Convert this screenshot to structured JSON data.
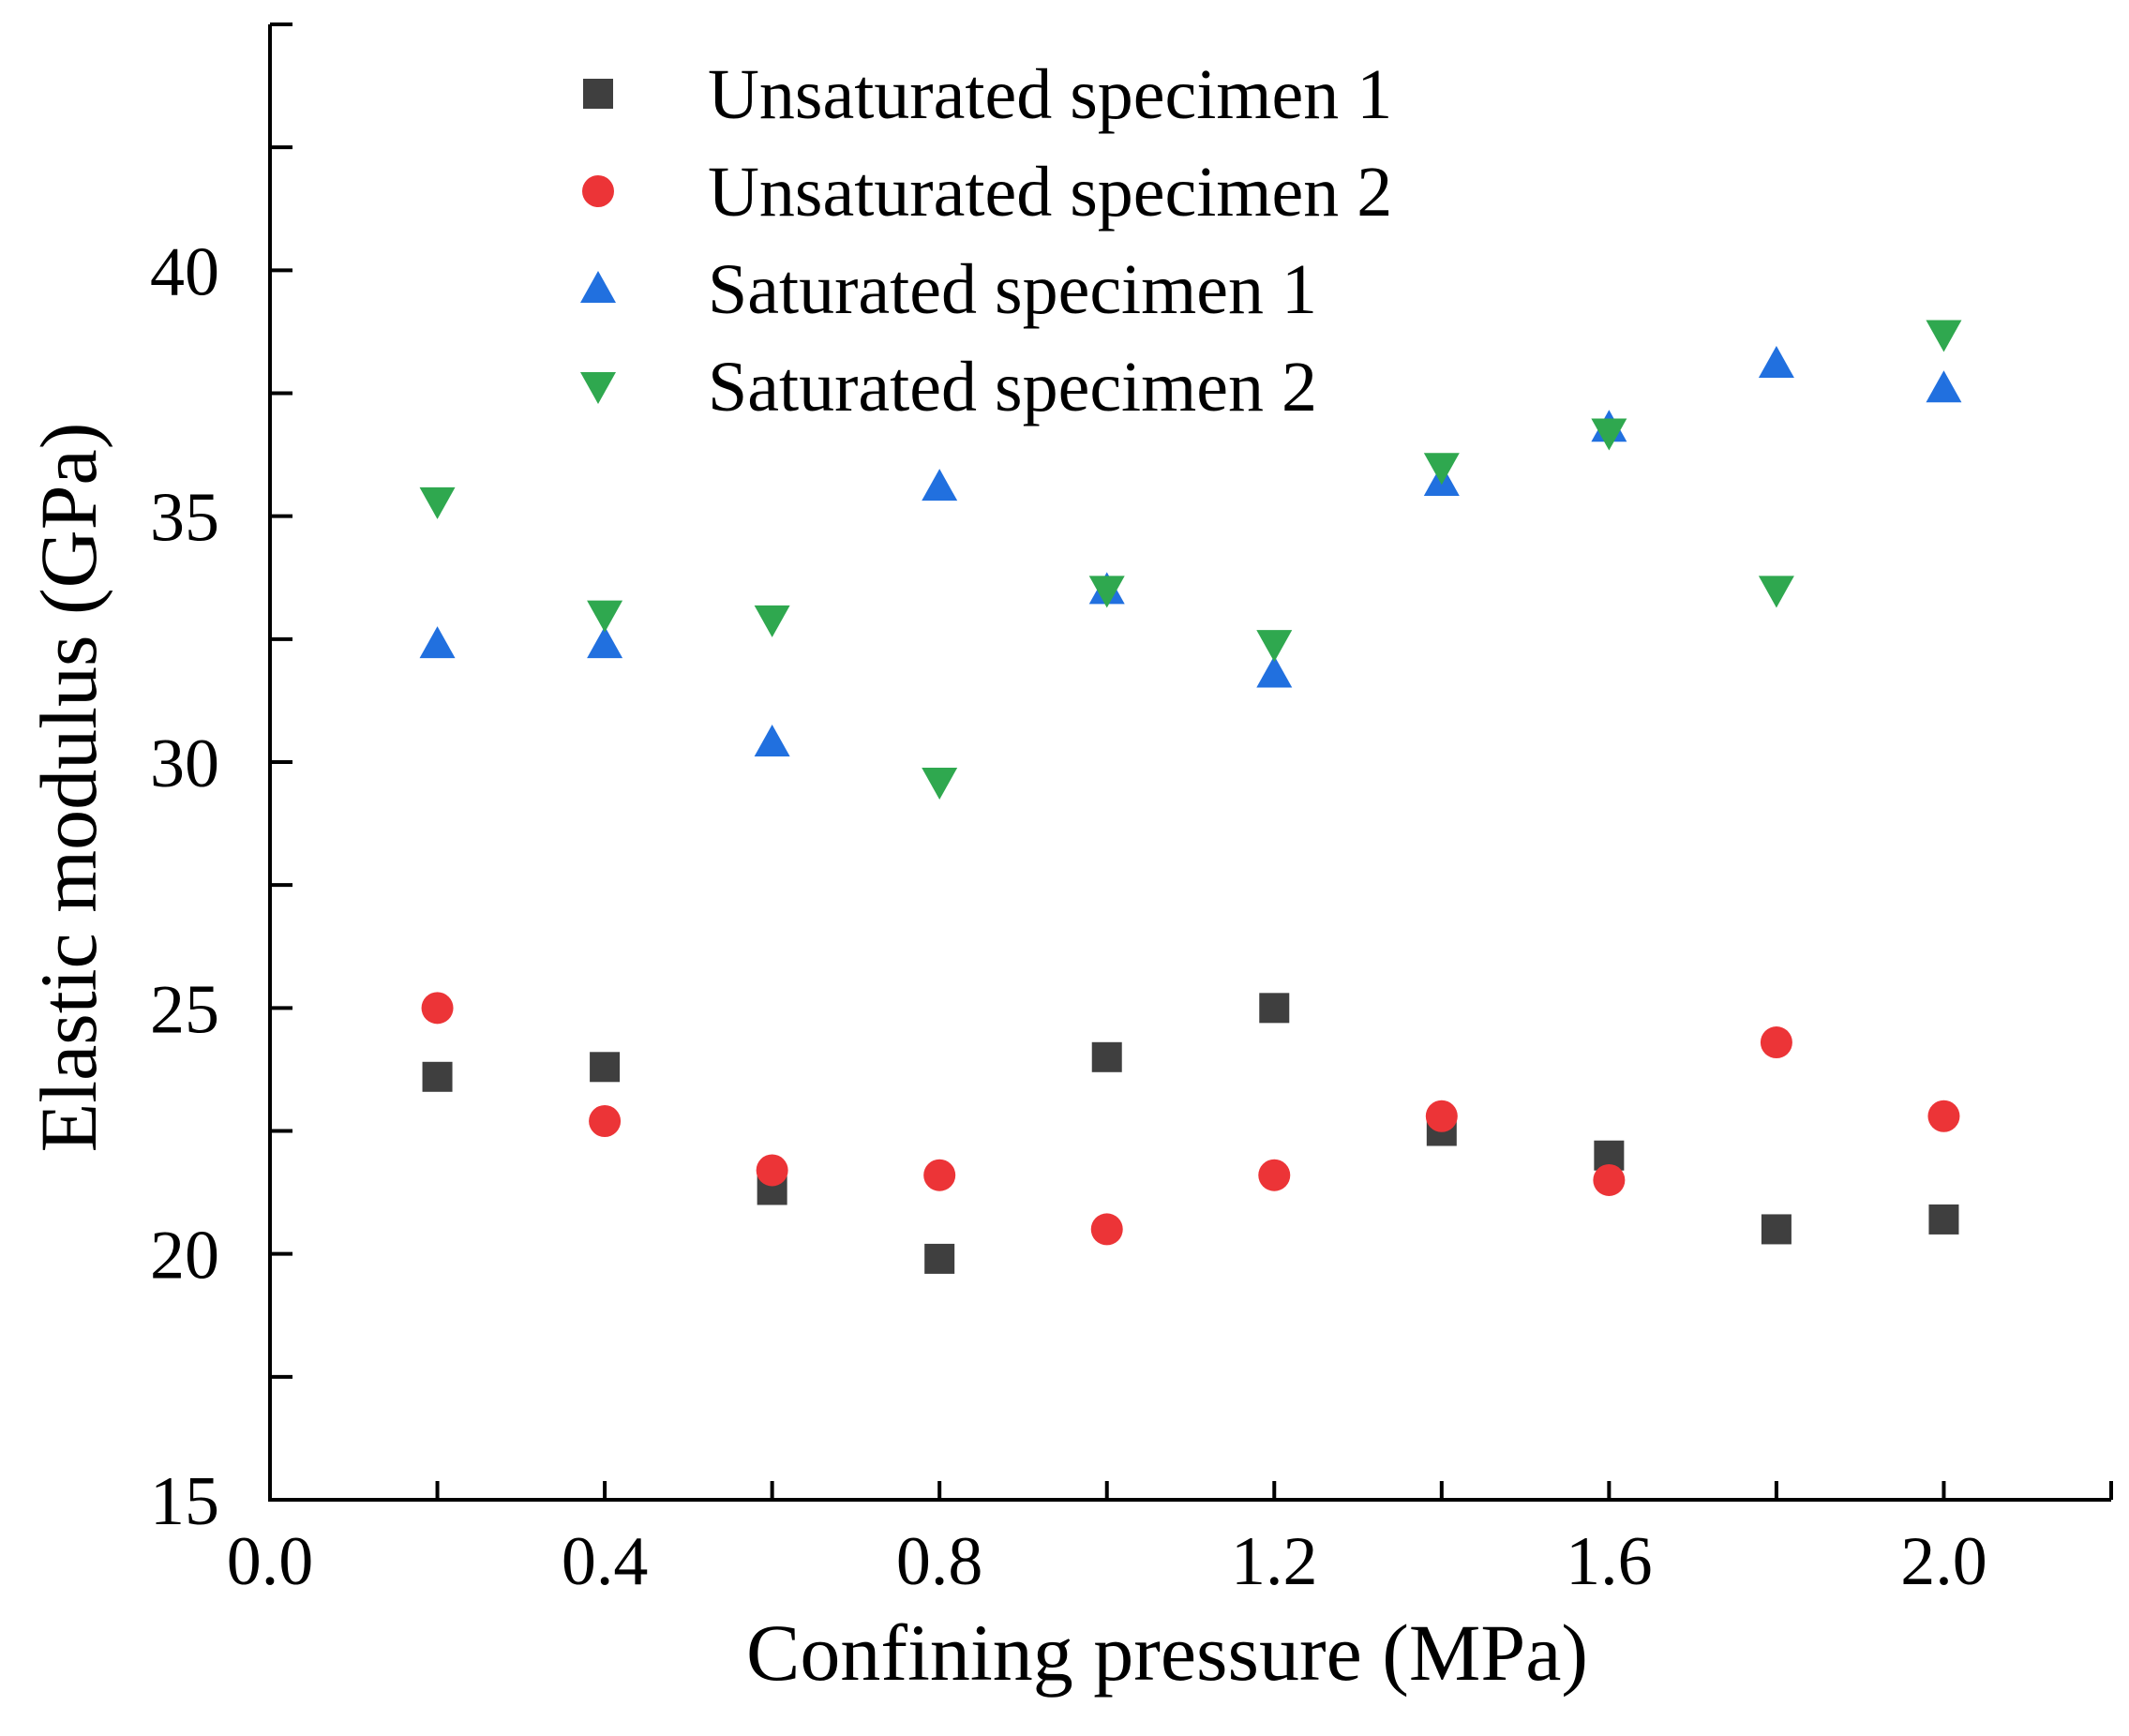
{
  "chart_data": {
    "type": "scatter",
    "title": "",
    "xlabel": "Confining pressure (MPa)",
    "ylabel": "Elastic modulus (GPa)",
    "xlim": [
      0.0,
      2.2
    ],
    "ylim": [
      15,
      45
    ],
    "x_ticks": [
      0.0,
      0.4,
      0.8,
      1.2,
      1.6,
      2.0
    ],
    "x_tick_labels": [
      "0.0",
      "0.4",
      "0.8",
      "1.2",
      "1.6",
      "2.0"
    ],
    "y_ticks": [
      15,
      20,
      25,
      30,
      35,
      40
    ],
    "y_tick_labels": [
      "15",
      "20",
      "25",
      "30",
      "35",
      "40"
    ],
    "grid": false,
    "legend_position": "top-center",
    "x": [
      0.2,
      0.4,
      0.6,
      0.8,
      1.0,
      1.2,
      1.4,
      1.6,
      1.8,
      2.0
    ],
    "series": [
      {
        "name": "Unsaturated specimen 1",
        "marker": "square",
        "color": "#3f3f3f",
        "values": [
          23.6,
          23.8,
          21.3,
          19.9,
          24.0,
          25.0,
          22.5,
          22.0,
          20.5,
          20.7
        ]
      },
      {
        "name": "Unsaturated specimen 2",
        "marker": "circle",
        "color": "#ec3437",
        "values": [
          25.0,
          22.7,
          21.7,
          21.6,
          20.5,
          21.6,
          22.8,
          21.5,
          24.3,
          22.8
        ]
      },
      {
        "name": "Saturated specimen 1",
        "marker": "triangle-up",
        "color": "#2170df",
        "values": [
          32.4,
          32.4,
          30.4,
          35.6,
          33.5,
          31.8,
          35.7,
          36.8,
          38.1,
          37.6
        ]
      },
      {
        "name": "Saturated specimen 2",
        "marker": "triangle-down",
        "color": "#2fa84f",
        "values": [
          35.3,
          33.0,
          32.9,
          29.6,
          33.5,
          32.4,
          36.0,
          36.7,
          33.5,
          38.7
        ]
      }
    ]
  }
}
